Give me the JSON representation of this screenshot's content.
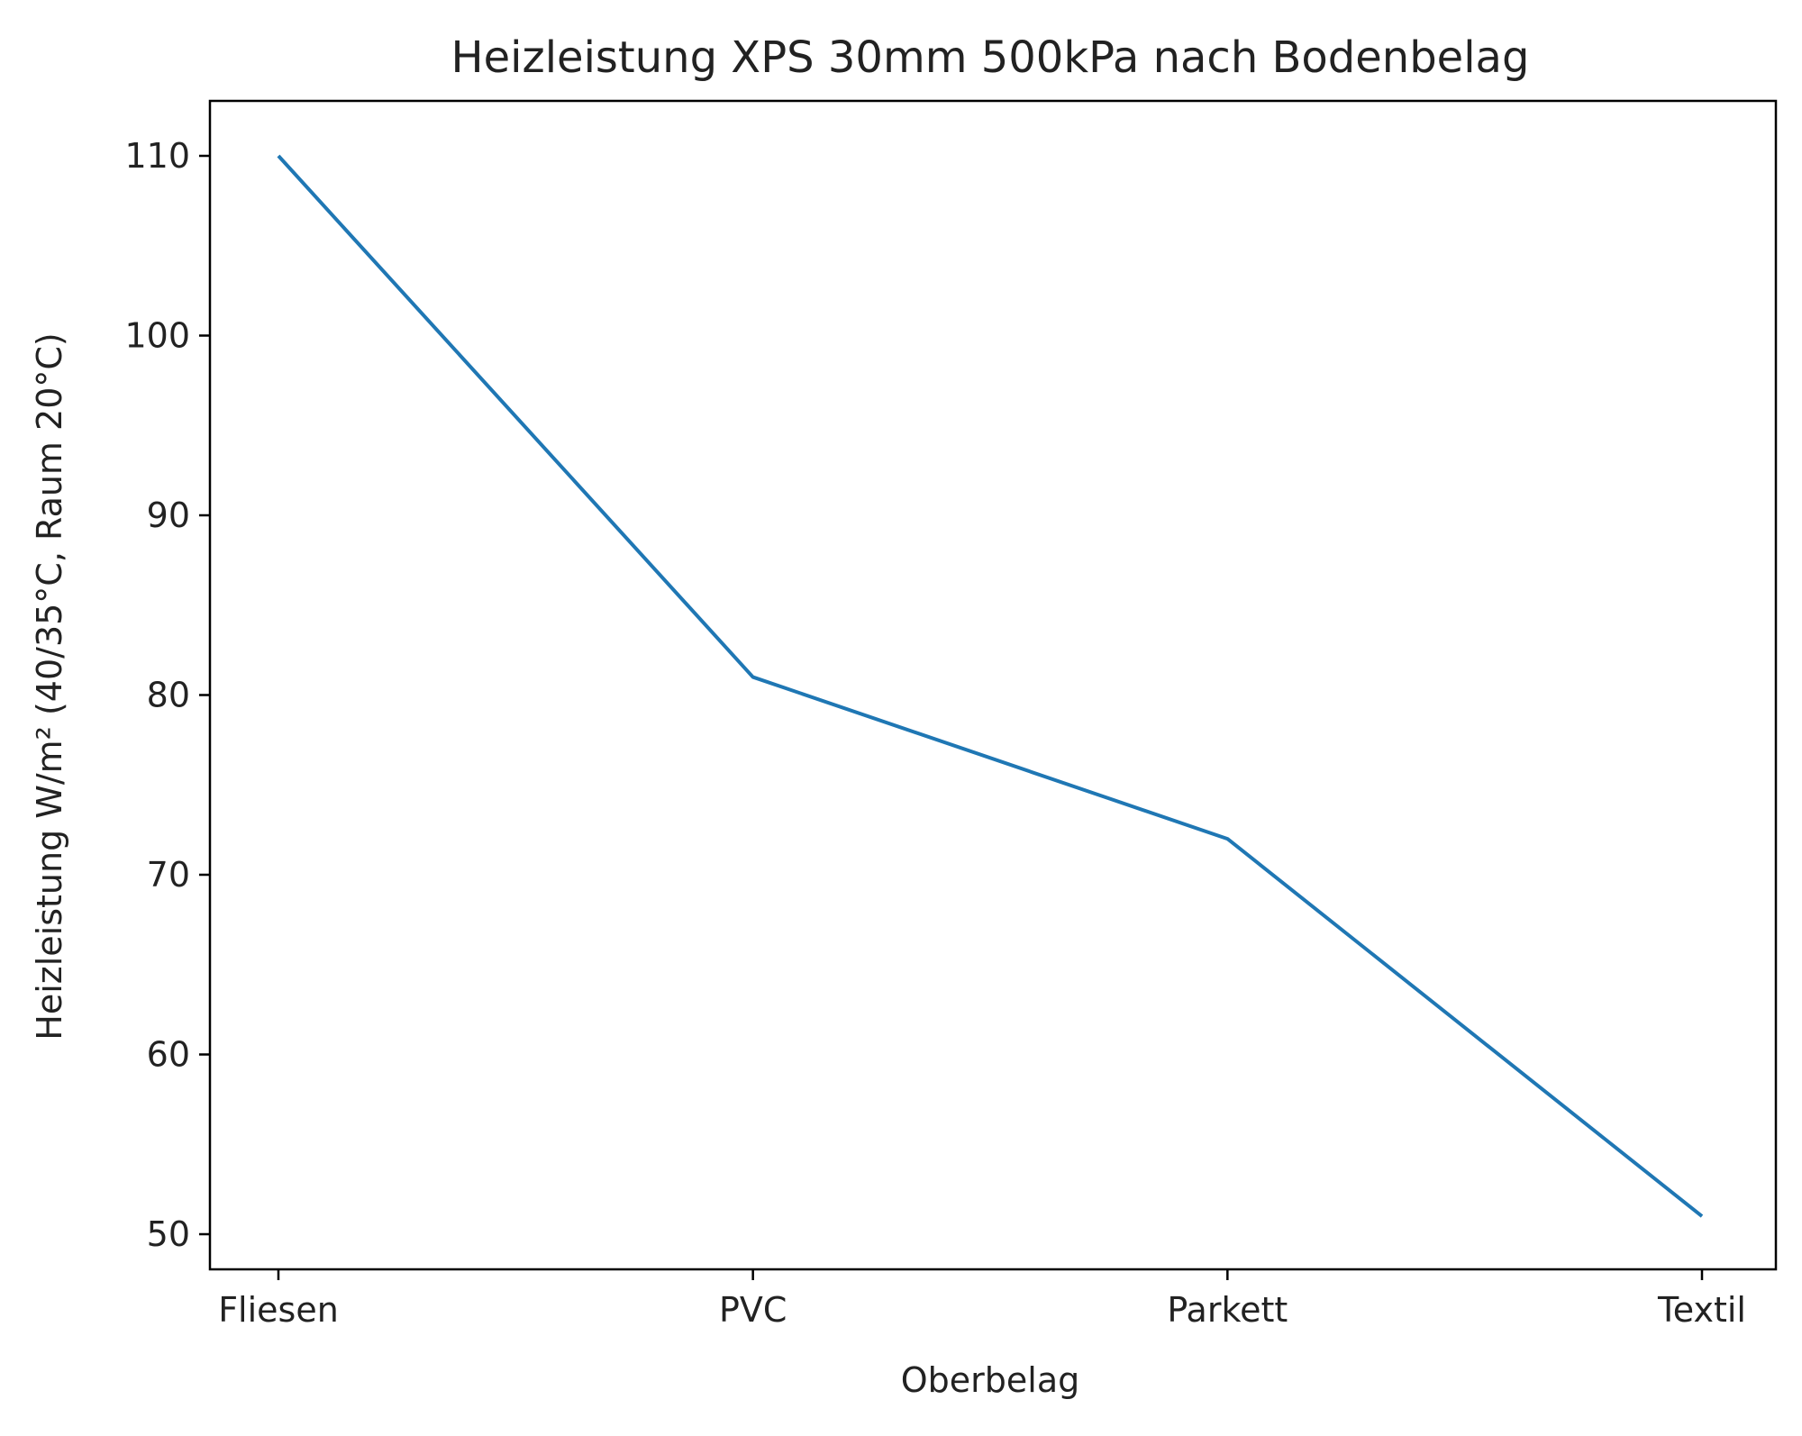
{
  "chart_data": {
    "type": "line",
    "title": "Heizleistung XPS 30mm 500kPa nach Bodenbelag",
    "xlabel": "Oberbelag",
    "ylabel": "Heizleistung W/m² (40/35°C, Raum 20°C)",
    "categories": [
      "Fliesen",
      "PVC",
      "Parkett",
      "Textil"
    ],
    "series": [
      {
        "values": [
          110,
          81,
          72,
          51
        ],
        "color": "#1f77b4"
      }
    ],
    "yticks": [
      50,
      60,
      70,
      80,
      90,
      100,
      110
    ],
    "ylim": [
      47,
      113
    ],
    "grid": false
  }
}
